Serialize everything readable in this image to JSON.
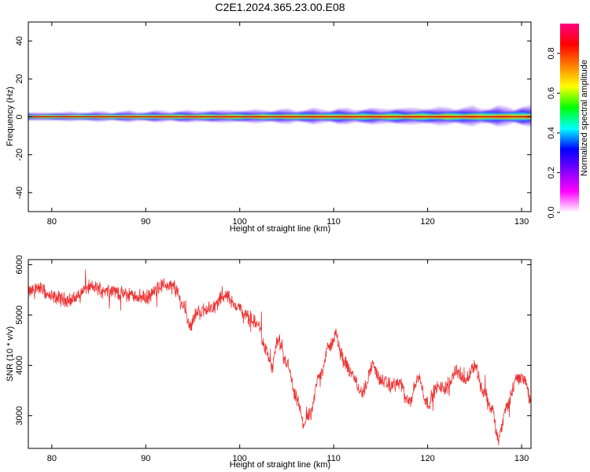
{
  "title": "C2E1.2024.365.23.00.E08",
  "chart_data": [
    {
      "type": "heatmap",
      "xlabel": "Height of straight line (km)",
      "ylabel": "Frequency (Hz)",
      "xlim": [
        77.5,
        131
      ],
      "ylim": [
        -50,
        50
      ],
      "xticks": [
        80,
        90,
        100,
        110,
        120,
        130
      ],
      "yticks": [
        40,
        20,
        0,
        -20,
        -40
      ],
      "colorbar": {
        "label": "Normalized spectral amplitude",
        "range": [
          0,
          0.95
        ],
        "ticks": [
          0.0,
          0.2,
          0.4,
          0.6,
          0.8
        ],
        "tick_labels": [
          "0.0",
          "0.2",
          "0.4",
          "0.6",
          "0.8"
        ],
        "colormap": [
          "#ffffff",
          "#ff00ff",
          "#8000ff",
          "#0000ff",
          "#00ffff",
          "#00ff00",
          "#ffff00",
          "#ff8000",
          "#ff0000",
          "#ff0080"
        ]
      },
      "band": {
        "center_hz": 0,
        "halfwidth_start_hz": 2,
        "halfwidth_end_hz": 5
      }
    },
    {
      "type": "line",
      "xlabel": "Height of straight line (km)",
      "ylabel": "SNR (10 * v/v)",
      "xlim": [
        77.5,
        131
      ],
      "ylim": [
        2350,
        6100
      ],
      "xticks": [
        80,
        90,
        100,
        110,
        120,
        130
      ],
      "yticks": [
        3000,
        4000,
        5000,
        6000
      ],
      "color": "#ee3333",
      "series": [
        {
          "x": [
            77.5,
            78.5,
            80,
            82,
            84,
            86,
            88,
            90,
            92,
            93,
            94,
            94.7,
            95.5,
            97,
            98.5,
            99.5,
            101,
            102,
            102.8,
            103.4,
            104,
            105,
            106,
            106.8,
            107.5,
            108.5,
            109.5,
            110.2,
            111,
            112,
            113,
            114.2,
            115,
            116,
            117,
            118,
            119,
            120,
            121,
            122,
            123,
            124,
            125,
            126,
            126.8,
            127.5,
            128.5,
            129.5,
            130.3,
            131
          ],
          "y": [
            5450,
            5550,
            5350,
            5300,
            5550,
            5500,
            5400,
            5350,
            5600,
            5550,
            5200,
            4800,
            5050,
            5150,
            5400,
            5200,
            4950,
            4800,
            4300,
            3950,
            4450,
            4050,
            3350,
            2850,
            3050,
            3800,
            4350,
            4600,
            4100,
            3800,
            3450,
            4000,
            3700,
            3600,
            3650,
            3250,
            3750,
            3250,
            3550,
            3550,
            3900,
            3700,
            4000,
            3450,
            3150,
            2550,
            3200,
            3750,
            3750,
            3250
          ]
        }
      ]
    }
  ]
}
